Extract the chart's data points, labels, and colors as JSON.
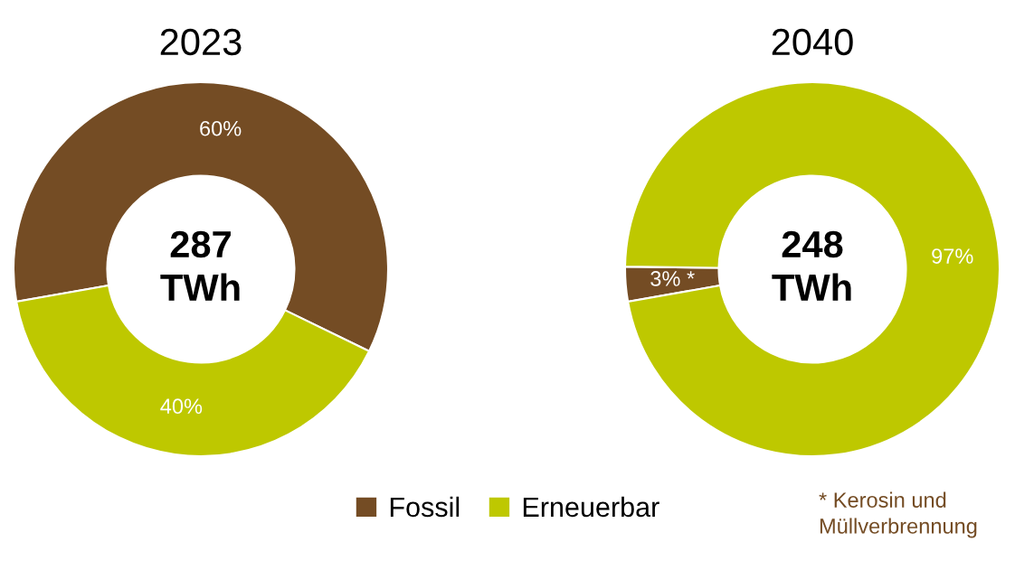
{
  "chart_data": [
    {
      "type": "donut",
      "title": "2023",
      "categories": [
        "Fossil",
        "Erneuerbar"
      ],
      "values": [
        60,
        40
      ],
      "colors": [
        "#744c24",
        "#bec800"
      ],
      "value_labels": [
        "60%",
        "40%"
      ],
      "annotations": [
        "287\nTWh"
      ],
      "legend": "bottom"
    },
    {
      "type": "donut",
      "title": "2040",
      "categories": [
        null,
        null
      ],
      "values": [
        3,
        97
      ],
      "colors": [
        "#744c24",
        "#bec800"
      ],
      "value_labels": [
        "3% *",
        "97%"
      ],
      "annotations": [
        "248\nTWh",
        "* Kerosin und\nMüllverbrennung"
      ]
    }
  ]
}
